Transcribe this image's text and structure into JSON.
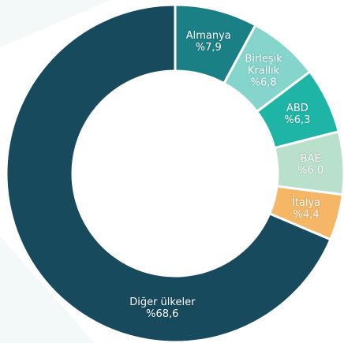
{
  "chart_data": {
    "type": "donut",
    "categories": [
      "Almanya",
      "Birleşik Krallık",
      "ABD",
      "BAE",
      "İtalya",
      "Diğer ülkeler"
    ],
    "values": [
      7.9,
      6.8,
      6.3,
      6.0,
      4.4,
      68.6
    ],
    "value_labels": [
      "%7,9",
      "%6,8",
      "%6,3",
      "%6,0",
      "%4,4",
      "%68,6"
    ],
    "colors": [
      "#1b7f86",
      "#85d5cd",
      "#1fb5a6",
      "#b8e0cb",
      "#f5b766",
      "#164a5c"
    ]
  }
}
